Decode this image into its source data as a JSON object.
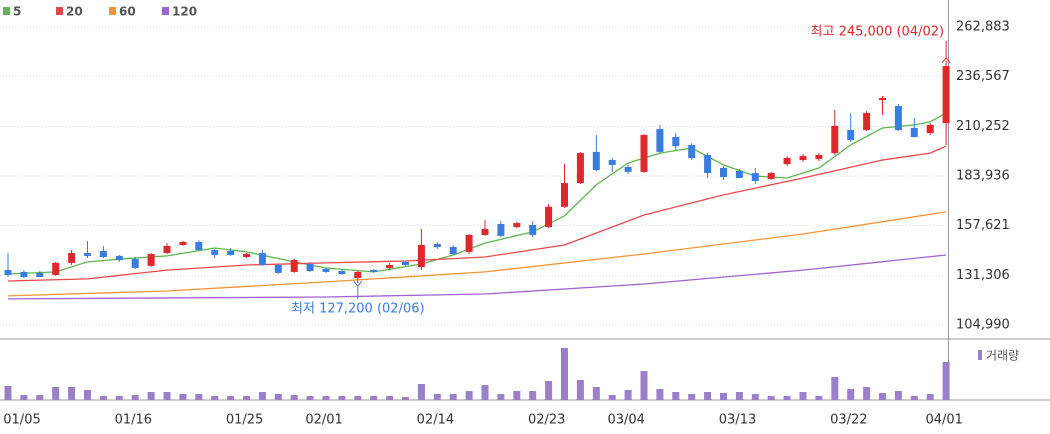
{
  "chart_data": [
    {
      "type": "candlestick",
      "categories": [
        "01/05",
        null,
        null,
        null,
        null,
        null,
        null,
        "01/16",
        null,
        null,
        null,
        null,
        null,
        null,
        "01/25",
        null,
        null,
        null,
        null,
        "02/01",
        null,
        null,
        null,
        null,
        null,
        null,
        "02/14",
        null,
        null,
        null,
        null,
        null,
        null,
        "02/23",
        null,
        null,
        null,
        null,
        "03/04",
        null,
        null,
        null,
        null,
        null,
        null,
        "03/13",
        null,
        null,
        null,
        null,
        null,
        null,
        "03/22",
        null,
        null,
        null,
        null,
        null,
        "04/01",
        null
      ],
      "open": [
        134100,
        133100,
        132600,
        131500,
        137900,
        143100,
        144200,
        141600,
        140000,
        136300,
        143100,
        147400,
        149000,
        144700,
        144200,
        141000,
        143100,
        136800,
        133100,
        137300,
        134700,
        133600,
        129900,
        134100,
        135200,
        138400,
        135700,
        147900,
        146300,
        143700,
        152700,
        158500,
        156900,
        158000,
        156900,
        167600,
        180200,
        196700,
        192400,
        188700,
        186100,
        208800,
        204600,
        200400,
        195100,
        188200,
        186600,
        185500,
        182400,
        190300,
        192400,
        193000,
        196100,
        208300,
        208300,
        224200,
        221000,
        209400,
        206700,
        212000
      ],
      "high": [
        143100,
        134100,
        133600,
        138400,
        144700,
        149500,
        146900,
        142100,
        141000,
        143100,
        148400,
        149500,
        150000,
        145300,
        145800,
        143100,
        144700,
        137300,
        140000,
        138400,
        135200,
        134100,
        133600,
        134700,
        137900,
        138900,
        155900,
        149000,
        147400,
        153200,
        160600,
        160100,
        159600,
        160100,
        169100,
        190300,
        196700,
        205700,
        193500,
        189800,
        206200,
        211000,
        206700,
        201400,
        196100,
        189200,
        187700,
        188200,
        186100,
        194500,
        195600,
        196100,
        218900,
        217300,
        218400,
        226300,
        222100,
        214700,
        212000,
        245000
      ],
      "low": [
        130400,
        129900,
        130400,
        131000,
        136800,
        140500,
        140500,
        138400,
        134700,
        135700,
        142600,
        146900,
        144200,
        140500,
        141600,
        140500,
        136300,
        132000,
        132600,
        133100,
        132600,
        131500,
        127200,
        132600,
        134100,
        136300,
        134100,
        145300,
        142100,
        142600,
        152200,
        151600,
        156400,
        151600,
        156400,
        167100,
        179700,
        186600,
        186100,
        185000,
        185500,
        196100,
        197700,
        192400,
        182900,
        181800,
        182900,
        179700,
        181800,
        189200,
        191300,
        191900,
        195100,
        202000,
        207800,
        216300,
        207800,
        204400,
        205700,
        200400
      ],
      "close": [
        131500,
        130400,
        130400,
        137900,
        143100,
        141600,
        141000,
        139400,
        135200,
        142600,
        146900,
        149000,
        144700,
        142100,
        142100,
        142600,
        136800,
        132600,
        139400,
        133600,
        133100,
        132000,
        133100,
        133100,
        136800,
        136800,
        147400,
        146300,
        142600,
        152700,
        155900,
        152200,
        159000,
        152700,
        167600,
        180200,
        196100,
        187100,
        189800,
        186100,
        205700,
        196700,
        199800,
        193500,
        185500,
        183400,
        182900,
        181300,
        185500,
        193500,
        194500,
        195100,
        210500,
        203000,
        217300,
        225300,
        208300,
        204600,
        211000,
        242200
      ],
      "up_color": "#e0282c",
      "down_color": "#3a7de0",
      "ylim": [
        98100,
        277200
      ],
      "yticks": [
        {
          "value": 262883,
          "label": "262,883"
        },
        {
          "value": 236567,
          "label": "236,567"
        },
        {
          "value": 210252,
          "label": "210,252"
        },
        {
          "value": 183936,
          "label": "183,936"
        },
        {
          "value": 157621,
          "label": "157,621"
        },
        {
          "value": 131306,
          "label": "131,306"
        },
        {
          "value": 104990,
          "label": "104,990"
        }
      ],
      "grid": true,
      "legend": "top-left",
      "series": [
        {
          "name": "5",
          "color": "#5cb84e",
          "x": [
            0,
            3,
            5,
            8,
            10,
            13,
            15,
            18,
            20,
            23,
            26,
            28,
            30,
            33,
            35,
            37,
            39,
            41,
            43,
            45,
            47,
            49,
            51,
            53,
            55,
            57,
            58,
            59
          ],
          "values": [
            132000,
            133100,
            138400,
            140500,
            141600,
            145800,
            143700,
            138400,
            135200,
            133100,
            137300,
            142100,
            148400,
            154300,
            162800,
            179200,
            190800,
            196100,
            198800,
            189800,
            183900,
            182900,
            188200,
            200400,
            209400,
            211000,
            212600,
            217300
          ]
        },
        {
          "name": "20",
          "color": "#e8484a",
          "x": [
            0,
            5,
            10,
            15,
            20,
            25,
            30,
            35,
            40,
            45,
            50,
            55,
            58,
            59
          ],
          "values": [
            128300,
            129400,
            134100,
            136800,
            137900,
            138900,
            141000,
            147400,
            163300,
            173900,
            182900,
            192400,
            196100,
            199800
          ]
        },
        {
          "name": "60",
          "color": "#f39436",
          "x": [
            0,
            10,
            20,
            30,
            40,
            50,
            59
          ],
          "values": [
            120400,
            123000,
            127800,
            133100,
            142600,
            153200,
            164900
          ]
        },
        {
          "name": "120",
          "color": "#a064d2",
          "x": [
            0,
            20,
            30,
            40,
            50,
            59
          ],
          "values": [
            118800,
            119800,
            121400,
            126700,
            134100,
            142100
          ]
        }
      ],
      "annotations": [
        {
          "text": "최고 245,000 (04/02)",
          "color": "#e0282c",
          "x": 59,
          "value": 245000
        },
        {
          "text": "최저 127,200 (02/06)",
          "color": "#3a7de0",
          "x": 22,
          "value": 127200
        }
      ]
    },
    {
      "type": "bar",
      "legend": "거래량",
      "color": "#9b7fc8",
      "ylim": [
        0,
        60
      ],
      "values": [
        14,
        5,
        5,
        13,
        13,
        10,
        4,
        4,
        5,
        8,
        8,
        6,
        6,
        4,
        4,
        4,
        8,
        6,
        5,
        4,
        4,
        4,
        4,
        4,
        4,
        3,
        16,
        6,
        6,
        9,
        15,
        6,
        9,
        9,
        19,
        52,
        20,
        13,
        5,
        10,
        29,
        11,
        8,
        6,
        8,
        7,
        8,
        6,
        4,
        4,
        8,
        4,
        23,
        11,
        13,
        7,
        9,
        4,
        6,
        38
      ]
    }
  ]
}
